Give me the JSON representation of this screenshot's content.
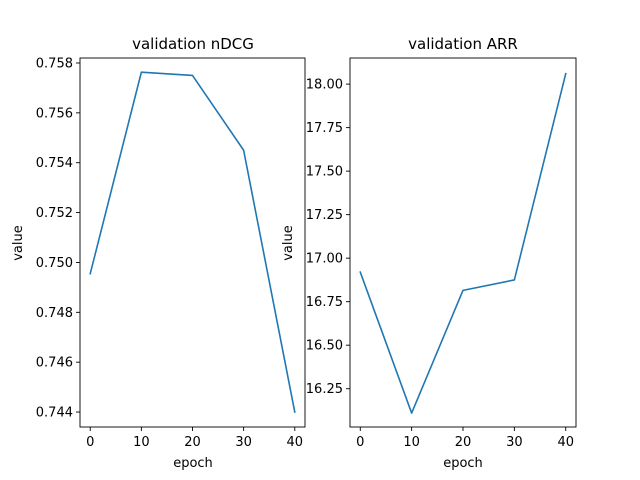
{
  "chart_data": [
    {
      "type": "line",
      "title": "validation nDCG",
      "xlabel": "epoch",
      "ylabel": "value",
      "x": [
        0,
        10,
        20,
        30,
        40
      ],
      "series": [
        {
          "values": [
            0.74955,
            0.75763,
            0.7575,
            0.7545,
            0.744
          ],
          "color": "#1f77b4"
        }
      ],
      "xlim": [
        -2,
        42
      ],
      "ylim": [
        0.7434,
        0.7582
      ],
      "xticks": [
        0,
        10,
        20,
        30,
        40
      ],
      "xtick_labels": [
        "0",
        "10",
        "20",
        "30",
        "40"
      ],
      "yticks": [
        0.744,
        0.746,
        0.748,
        0.75,
        0.752,
        0.754,
        0.756,
        0.758
      ],
      "ytick_labels": [
        "0.744",
        "0.746",
        "0.748",
        "0.750",
        "0.752",
        "0.754",
        "0.756",
        "0.758"
      ],
      "grid": false
    },
    {
      "type": "line",
      "title": "validation ARR",
      "xlabel": "epoch",
      "ylabel": "value",
      "x": [
        0,
        10,
        20,
        30,
        40
      ],
      "series": [
        {
          "values": [
            16.92,
            16.11,
            16.815,
            16.875,
            18.06
          ],
          "color": "#1f77b4"
        }
      ],
      "xlim": [
        -2,
        42
      ],
      "ylim": [
        16.03,
        18.15
      ],
      "xticks": [
        0,
        10,
        20,
        30,
        40
      ],
      "xtick_labels": [
        "0",
        "10",
        "20",
        "30",
        "40"
      ],
      "yticks": [
        16.25,
        16.5,
        16.75,
        17.0,
        17.25,
        17.5,
        17.75,
        18.0
      ],
      "ytick_labels": [
        "16.25",
        "16.50",
        "16.75",
        "17.00",
        "17.25",
        "17.50",
        "17.75",
        "18.00"
      ],
      "grid": false
    }
  ]
}
